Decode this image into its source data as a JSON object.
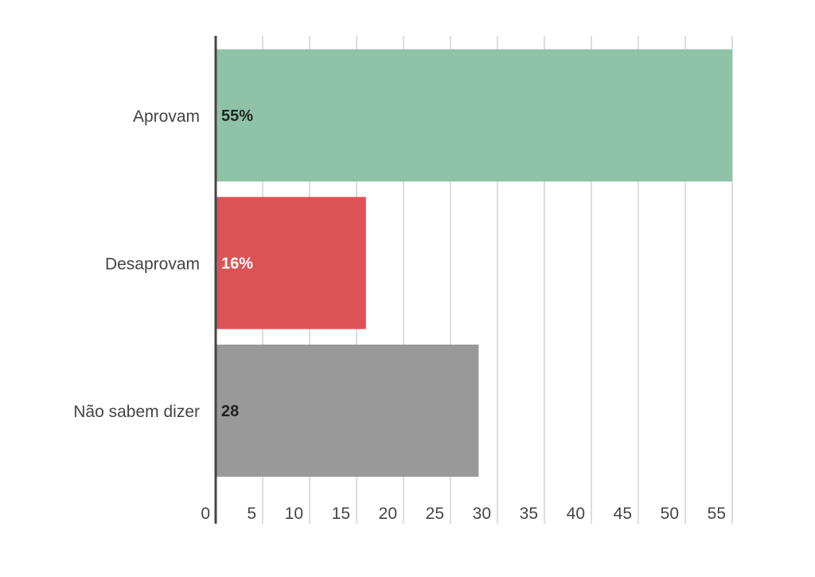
{
  "chart_data": {
    "type": "bar",
    "orientation": "horizontal",
    "title": "",
    "xlabel": "",
    "ylabel": "",
    "categories": [
      "Aprovam",
      "Desaprovam",
      "Não sabem dizer"
    ],
    "values": [
      55,
      16,
      28
    ],
    "data_labels": [
      "55%",
      "16%",
      "28"
    ],
    "colors": [
      "#8fc3a8",
      "#dc5355",
      "#999999"
    ],
    "label_colors": [
      "#222222",
      "#ffffff",
      "#222222"
    ],
    "xlim": [
      0,
      55
    ],
    "ticks": [
      0,
      5,
      10,
      15,
      20,
      25,
      30,
      35,
      40,
      45,
      50,
      55
    ],
    "grid": true,
    "legend": "none"
  }
}
